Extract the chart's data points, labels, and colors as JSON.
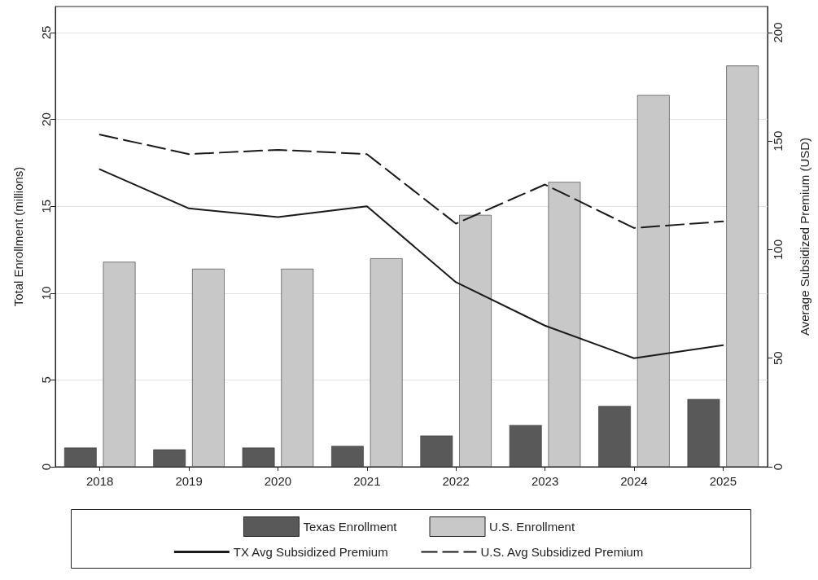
{
  "chart_data": {
    "type": "bar",
    "categories": [
      "2018",
      "2019",
      "2020",
      "2021",
      "2022",
      "2023",
      "2024",
      "2025"
    ],
    "ylabel": "Total Enrollment (millions)",
    "y2label": "Average Subsidized Premium (USD)",
    "ylim": [
      0,
      26.5
    ],
    "yticks": [
      0,
      5,
      10,
      15,
      20,
      25
    ],
    "y2lim": [
      0,
      212
    ],
    "y2ticks": [
      0,
      50,
      100,
      150,
      200
    ],
    "grid": "y",
    "legend": "bottom",
    "marker": "none",
    "series": [
      {
        "name": "Texas Enrollment",
        "color": "#595959",
        "values": [
          1.1,
          1.0,
          1.1,
          1.2,
          1.8,
          2.4,
          3.5,
          3.9
        ]
      },
      {
        "name": "U.S. Enrollment",
        "color": "#c8c8c8",
        "values": [
          11.8,
          11.4,
          11.4,
          12.0,
          14.5,
          16.4,
          21.4,
          23.1
        ]
      },
      {
        "name": "TX Avg Subsidized Premium",
        "type": "line",
        "axis": "y2",
        "line_style": "solid",
        "color": "#1a1a1a",
        "values": [
          137,
          119,
          115,
          120,
          85,
          65,
          50,
          56
        ]
      },
      {
        "name": "U.S. Avg Subsidized Premium",
        "type": "line",
        "axis": "y2",
        "line_style": "dashed",
        "color": "#1a1a1a",
        "values": [
          153,
          144,
          146,
          144,
          112,
          130,
          110,
          113
        ]
      }
    ]
  }
}
